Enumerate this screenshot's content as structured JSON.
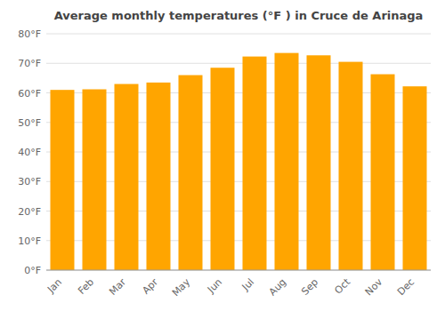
{
  "chart_data": {
    "type": "bar",
    "title": "Average monthly temperatures (°F ) in Cruce de Arinaga",
    "categories": [
      "Jan",
      "Feb",
      "Mar",
      "Apr",
      "May",
      "Jun",
      "Jul",
      "Aug",
      "Sep",
      "Oct",
      "Nov",
      "Dec"
    ],
    "values": [
      61.0,
      61.2,
      63.0,
      63.5,
      66.0,
      68.5,
      72.3,
      73.5,
      72.7,
      70.5,
      66.3,
      62.2
    ],
    "color": "#FFA500",
    "ylim": [
      0,
      80
    ],
    "yticks": [
      {
        "value": 0,
        "label": "0°F"
      },
      {
        "value": 10,
        "label": "10°F"
      },
      {
        "value": 20,
        "label": "20°F"
      },
      {
        "value": 30,
        "label": "30°F"
      },
      {
        "value": 40,
        "label": "40°F"
      },
      {
        "value": 50,
        "label": "50°F"
      },
      {
        "value": 60,
        "label": "60°F"
      },
      {
        "value": 70,
        "label": "70°F"
      },
      {
        "value": 80,
        "label": "80°F"
      }
    ],
    "grid": true
  }
}
